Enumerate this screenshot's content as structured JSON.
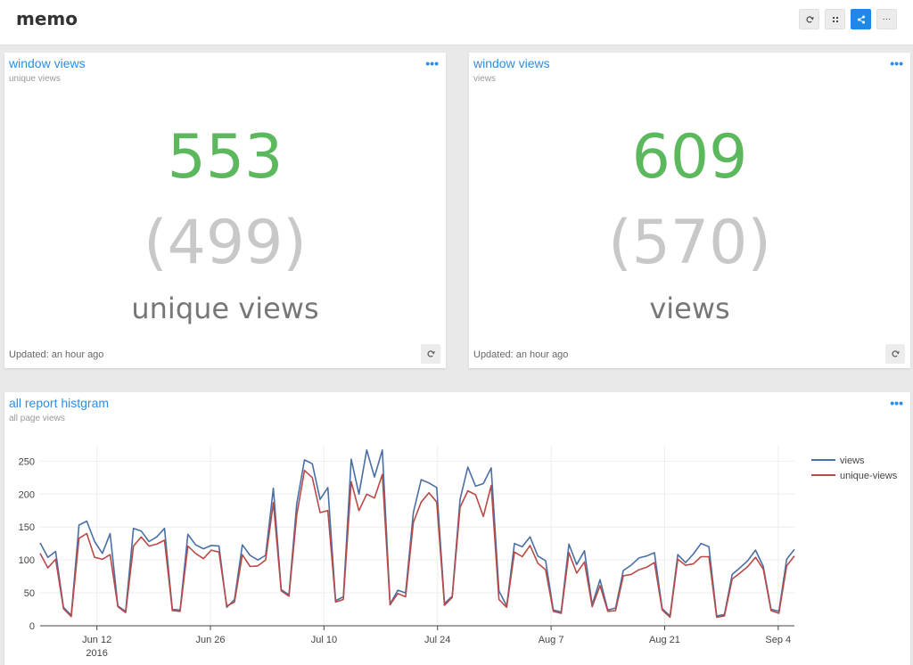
{
  "app": {
    "title": "memo"
  },
  "toolbar": {
    "refresh_icon": "refresh-icon",
    "fullscreen_icon": "fullscreen-icon",
    "share_icon": "share-icon",
    "more_label": "···",
    "accent": "#1e88e5"
  },
  "panels": [
    {
      "title": "window views",
      "subtitle": "unique views",
      "menu": "•••",
      "value": "553",
      "previous": "(499)",
      "label": "unique views",
      "updated": "Updated: an hour ago"
    },
    {
      "title": "window views",
      "subtitle": "views",
      "menu": "•••",
      "value": "609",
      "previous": "(570)",
      "label": "views",
      "updated": "Updated: an hour ago"
    }
  ],
  "histogram": {
    "title": "all report histgram",
    "subtitle": "all page views",
    "menu": "•••"
  },
  "chart_data": {
    "type": "line",
    "x_start": "2016-06-05",
    "x_end": "2016-09-06",
    "xticks": [
      {
        "date": "2016-06-12",
        "label": "Jun 12",
        "sub": "2016"
      },
      {
        "date": "2016-06-26",
        "label": "Jun 26",
        "sub": ""
      },
      {
        "date": "2016-07-10",
        "label": "Jul 10",
        "sub": ""
      },
      {
        "date": "2016-07-24",
        "label": "Jul 24",
        "sub": ""
      },
      {
        "date": "2016-08-07",
        "label": "Aug 7",
        "sub": ""
      },
      {
        "date": "2016-08-21",
        "label": "Aug 21",
        "sub": ""
      },
      {
        "date": "2016-09-04",
        "label": "Sep 4",
        "sub": ""
      }
    ],
    "ylim": [
      0,
      260
    ],
    "yticks": [
      0,
      50,
      100,
      150,
      200,
      250
    ],
    "grid": true,
    "legend_position": "top-right",
    "series": [
      {
        "name": "views",
        "color": "#4a6fa5",
        "values": [
          126,
          104,
          113,
          28,
          16,
          153,
          159,
          128,
          110,
          140,
          30,
          22,
          148,
          144,
          128,
          135,
          148,
          25,
          24,
          139,
          123,
          117,
          122,
          121,
          28,
          40,
          123,
          107,
          100,
          107,
          209,
          55,
          47,
          185,
          252,
          246,
          192,
          210,
          38,
          44,
          253,
          200,
          267,
          226,
          267,
          33,
          54,
          50,
          172,
          222,
          217,
          210,
          34,
          45,
          192,
          241,
          212,
          216,
          240,
          53,
          30,
          125,
          120,
          135,
          106,
          99,
          24,
          21,
          124,
          93,
          114,
          32,
          70,
          24,
          27,
          84,
          92,
          103,
          106,
          111,
          26,
          15,
          108,
          96,
          109,
          125,
          120,
          15,
          17,
          78,
          88,
          99,
          115,
          90,
          25,
          22,
          101,
          116
        ]
      },
      {
        "name": "unique-views",
        "color": "#b94a48",
        "values": [
          110,
          88,
          101,
          26,
          14,
          133,
          140,
          104,
          101,
          108,
          29,
          20,
          121,
          135,
          121,
          124,
          130,
          23,
          22,
          121,
          110,
          102,
          115,
          112,
          30,
          36,
          108,
          90,
          91,
          100,
          187,
          53,
          45,
          168,
          236,
          225,
          172,
          175,
          36,
          40,
          219,
          175,
          200,
          194,
          230,
          32,
          49,
          44,
          157,
          188,
          202,
          188,
          31,
          43,
          180,
          205,
          199,
          166,
          213,
          40,
          28,
          112,
          105,
          122,
          95,
          85,
          22,
          19,
          111,
          80,
          97,
          29,
          61,
          22,
          23,
          76,
          78,
          85,
          89,
          96,
          24,
          13,
          101,
          92,
          94,
          105,
          105,
          13,
          15,
          71,
          80,
          90,
          104,
          86,
          23,
          19,
          91,
          106
        ]
      }
    ]
  }
}
